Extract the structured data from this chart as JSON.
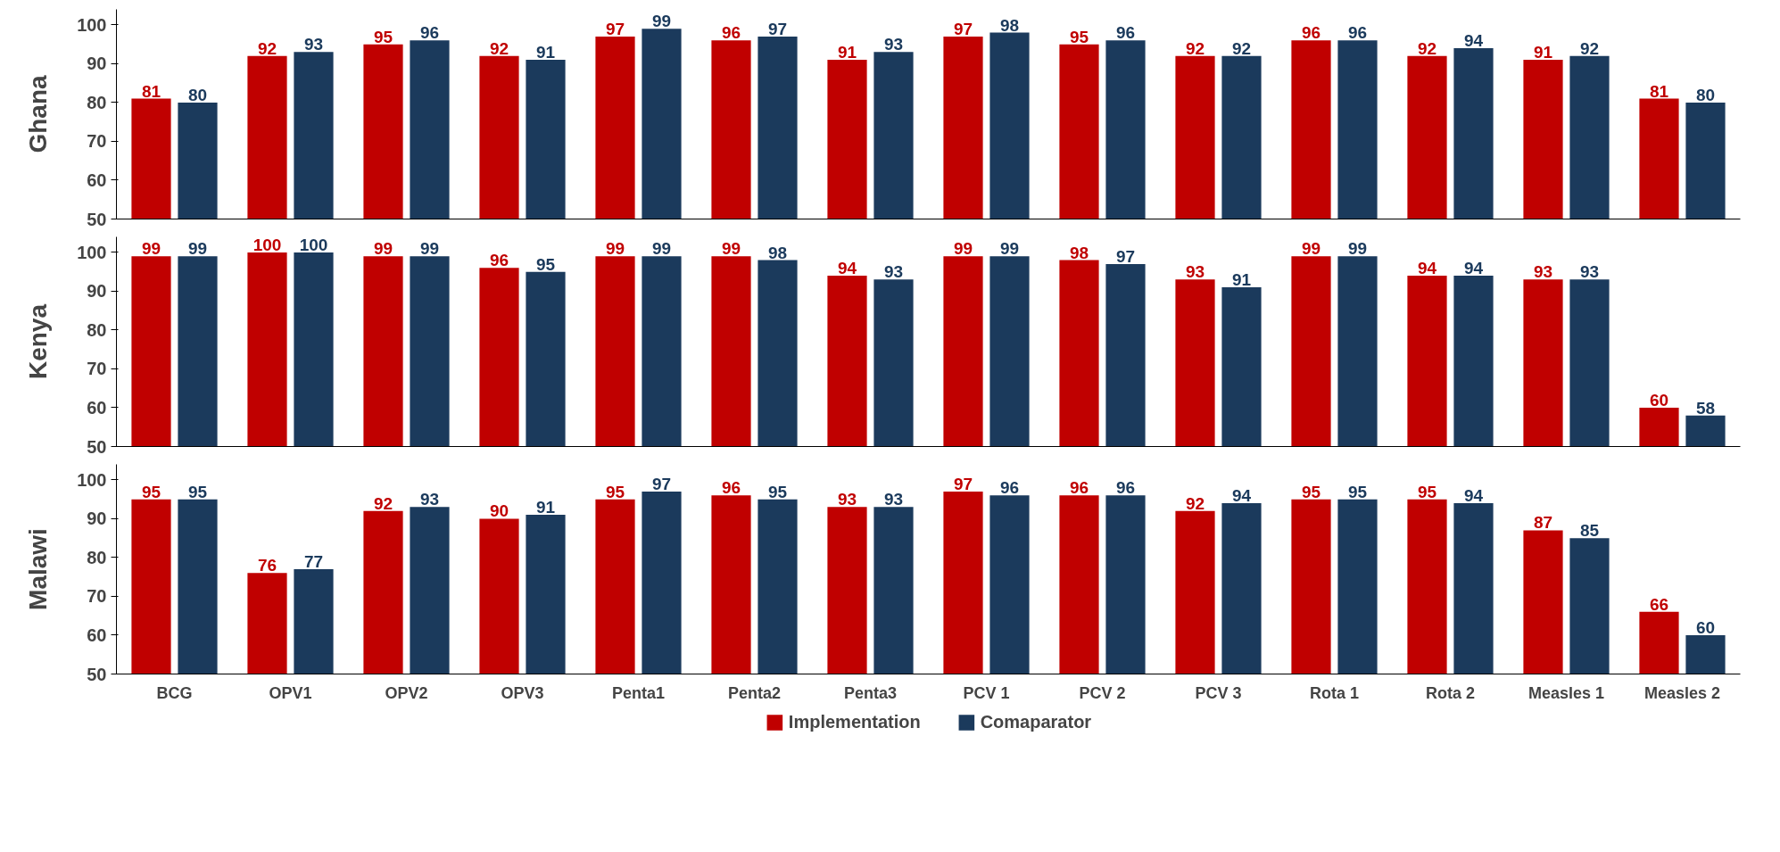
{
  "chart_data": [
    {
      "type": "bar",
      "ylabel": "Ghana",
      "ylim": [
        50,
        104
      ],
      "yticks": [
        50,
        60,
        70,
        80,
        90,
        100
      ],
      "tick_labels": "y",
      "data_labels": true,
      "series": [
        {
          "color": "#c00000",
          "values": [
            81,
            92,
            95,
            92,
            97,
            96,
            91,
            97,
            95,
            92,
            96,
            92,
            91,
            81
          ]
        },
        {
          "color": "#1b3a5c",
          "values": [
            80,
            93,
            96,
            91,
            99,
            97,
            93,
            98,
            96,
            92,
            96,
            94,
            92,
            80
          ]
        }
      ]
    },
    {
      "type": "bar",
      "ylabel": "Kenya",
      "ylim": [
        50,
        104
      ],
      "yticks": [
        50,
        60,
        70,
        80,
        90,
        100
      ],
      "tick_labels": "y",
      "data_labels": true,
      "series": [
        {
          "color": "#c00000",
          "values": [
            99,
            100,
            99,
            96,
            99,
            99,
            94,
            99,
            98,
            93,
            99,
            94,
            93,
            60
          ]
        },
        {
          "color": "#1b3a5c",
          "values": [
            99,
            100,
            99,
            95,
            99,
            98,
            93,
            99,
            97,
            91,
            99,
            94,
            93,
            58
          ]
        }
      ]
    },
    {
      "type": "bar",
      "ylabel": "Malawi",
      "categories": [
        "BCG",
        "OPV1",
        "OPV2",
        "OPV3",
        "Penta1",
        "Penta2",
        "Penta3",
        "PCV 1",
        "PCV 2",
        "PCV 3",
        "Rota 1",
        "Rota 2",
        "Measles 1",
        "Measles 2"
      ],
      "ylim": [
        50,
        104
      ],
      "yticks": [
        50,
        60,
        70,
        80,
        90,
        100
      ],
      "data_labels": true,
      "legend": "bottom",
      "series": [
        {
          "name": "Implementation",
          "color": "#c00000",
          "values": [
            95,
            76,
            92,
            90,
            95,
            96,
            93,
            97,
            96,
            92,
            95,
            95,
            87,
            66
          ]
        },
        {
          "name": "Comaparator",
          "color": "#1b3a5c",
          "values": [
            95,
            77,
            93,
            91,
            97,
            95,
            93,
            96,
            96,
            94,
            95,
            94,
            85,
            60
          ]
        }
      ]
    }
  ]
}
